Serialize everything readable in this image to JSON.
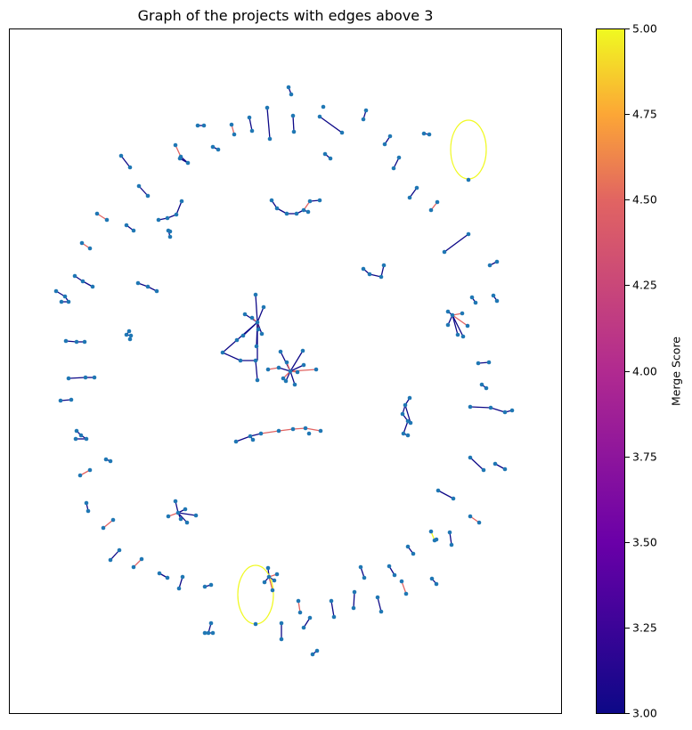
{
  "title": "Graph of the projects with edges above 3",
  "colorbar": {
    "label": "Merge Score",
    "ticks": [
      "5.00",
      "4.75",
      "4.50",
      "4.25",
      "4.00",
      "3.75",
      "3.50",
      "3.25",
      "3.00"
    ],
    "colormap": "plasma",
    "range": [
      3.0,
      5.0
    ]
  },
  "colors": {
    "node": "#1f77b4",
    "edge_low": "#0d0887",
    "edge_mid": "#e16462",
    "edge_high": "#f0f921"
  }
}
